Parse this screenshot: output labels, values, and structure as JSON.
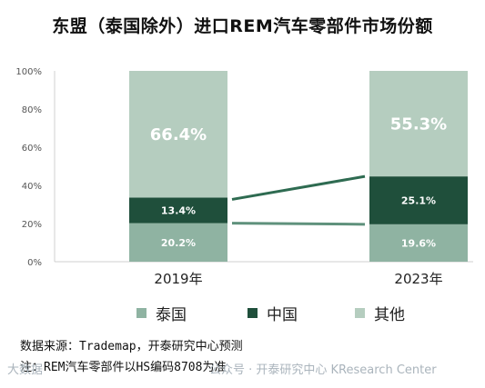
{
  "title": "东盟（泰国除外）进口REM汽车零部件市场份额",
  "chart_data": {
    "type": "bar",
    "stacked": true,
    "categories": [
      "2019年",
      "2023年"
    ],
    "series": [
      {
        "name": "泰国",
        "values": [
          20.2,
          19.6
        ],
        "labels": [
          "20.2%",
          "19.6%"
        ],
        "color": "#8fb3a2"
      },
      {
        "name": "中国",
        "values": [
          13.4,
          25.1
        ],
        "labels": [
          "13.4%",
          "25.1%"
        ],
        "color": "#1f4f3b"
      },
      {
        "name": "其他",
        "values": [
          66.4,
          55.3
        ],
        "labels": [
          "66.4%",
          "55.3%"
        ],
        "color": "#b5cdbf"
      }
    ],
    "ylim": [
      0,
      100
    ],
    "yticks": [
      "0%",
      "20%",
      "40%",
      "60%",
      "80%",
      "100%"
    ],
    "grid": false,
    "legend_position": "bottom"
  },
  "footer": {
    "source": "数据来源：Trademap，开泰研究中心预测",
    "note": "注：REM汽车零部件以HS编码8708为准"
  },
  "watermarks": {
    "left": "大数据",
    "right": "公众号 · 开泰研究中心 KResearch Center"
  }
}
